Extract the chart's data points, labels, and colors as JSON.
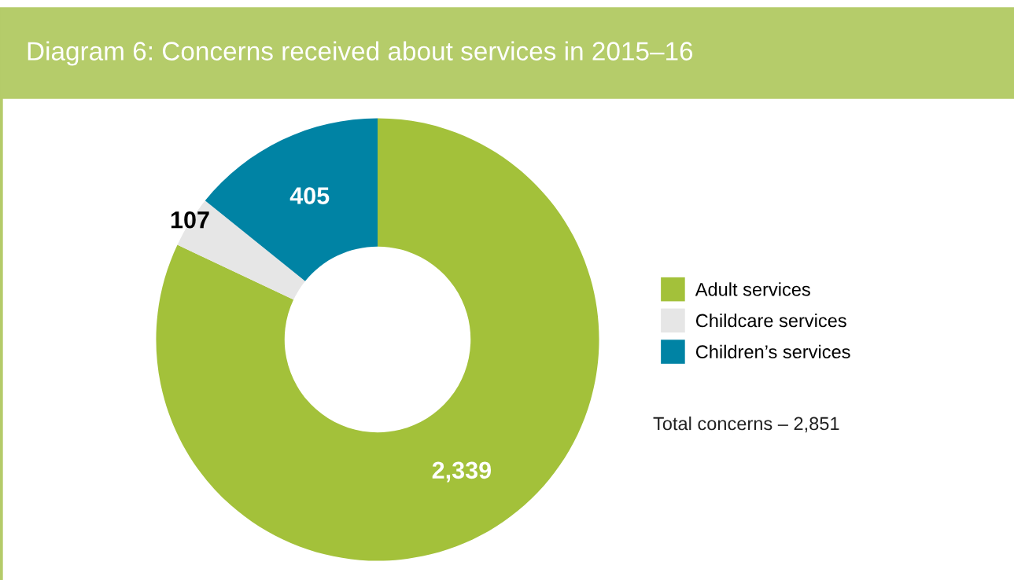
{
  "chart_data": {
    "type": "donut",
    "title": "Diagram 6: Concerns received about services in 2015–16",
    "categories": [
      "Adult services",
      "Childcare services",
      "Children’s services"
    ],
    "values": [
      2339,
      107,
      405
    ],
    "colors": [
      "#a3c13a",
      "#e6e6e6",
      "#0083a4"
    ],
    "value_labels": [
      "2,339",
      "107",
      "405"
    ],
    "legend": "right",
    "annotations": [
      "Total concerns – 2,851"
    ]
  }
}
